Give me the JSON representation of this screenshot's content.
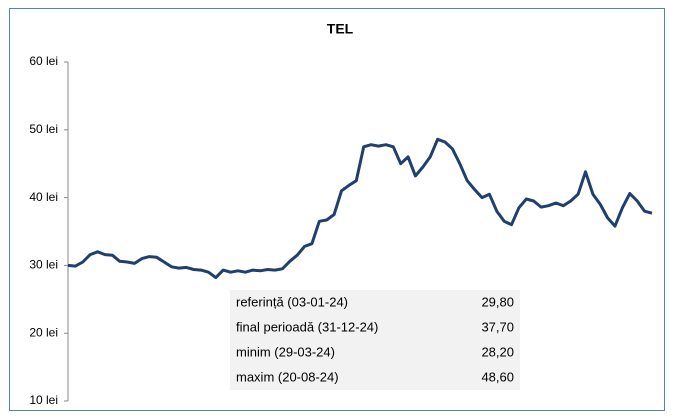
{
  "chart_data": {
    "type": "line",
    "title": "TEL",
    "series": [
      {
        "name": "TEL",
        "color": "#1f3f6e",
        "values": [
          30.0,
          29.9,
          30.5,
          31.6,
          32.0,
          31.6,
          31.5,
          30.6,
          30.5,
          30.3,
          31.0,
          31.3,
          31.2,
          30.5,
          29.8,
          29.6,
          29.7,
          29.4,
          29.3,
          29.0,
          28.2,
          29.3,
          29.0,
          29.2,
          29.0,
          29.3,
          29.2,
          29.4,
          29.3,
          29.5,
          30.6,
          31.5,
          32.8,
          33.2,
          36.5,
          36.7,
          37.5,
          41.0,
          41.8,
          42.5,
          47.5,
          47.8,
          47.6,
          47.8,
          47.5,
          45.0,
          46.0,
          43.2,
          44.5,
          46.0,
          48.6,
          48.2,
          47.2,
          45.0,
          42.5,
          41.2,
          40.0,
          40.5,
          38.0,
          36.5,
          36.0,
          38.5,
          39.8,
          39.5,
          38.6,
          38.8,
          39.2,
          38.8,
          39.5,
          40.5,
          43.8,
          40.5,
          39.0,
          37.0,
          35.8,
          38.5,
          40.6,
          39.5,
          38.0,
          37.7
        ]
      }
    ],
    "ylim": [
      10,
      60
    ],
    "yticks": [
      {
        "value": 10,
        "label": "10 lei"
      },
      {
        "value": 20,
        "label": "20 lei"
      },
      {
        "value": 30,
        "label": "30 lei"
      },
      {
        "value": 40,
        "label": "40 lei"
      },
      {
        "value": 50,
        "label": "50 lei"
      },
      {
        "value": 60,
        "label": "60 lei"
      }
    ],
    "grid": false,
    "table": [
      [
        "referință (03-01-24)",
        "29,80"
      ],
      [
        "final perioadă (31-12-24)",
        "37,70"
      ],
      [
        "minim (29-03-24)",
        "28,20"
      ],
      [
        "maxim (20-08-24)",
        "48,60"
      ]
    ]
  }
}
